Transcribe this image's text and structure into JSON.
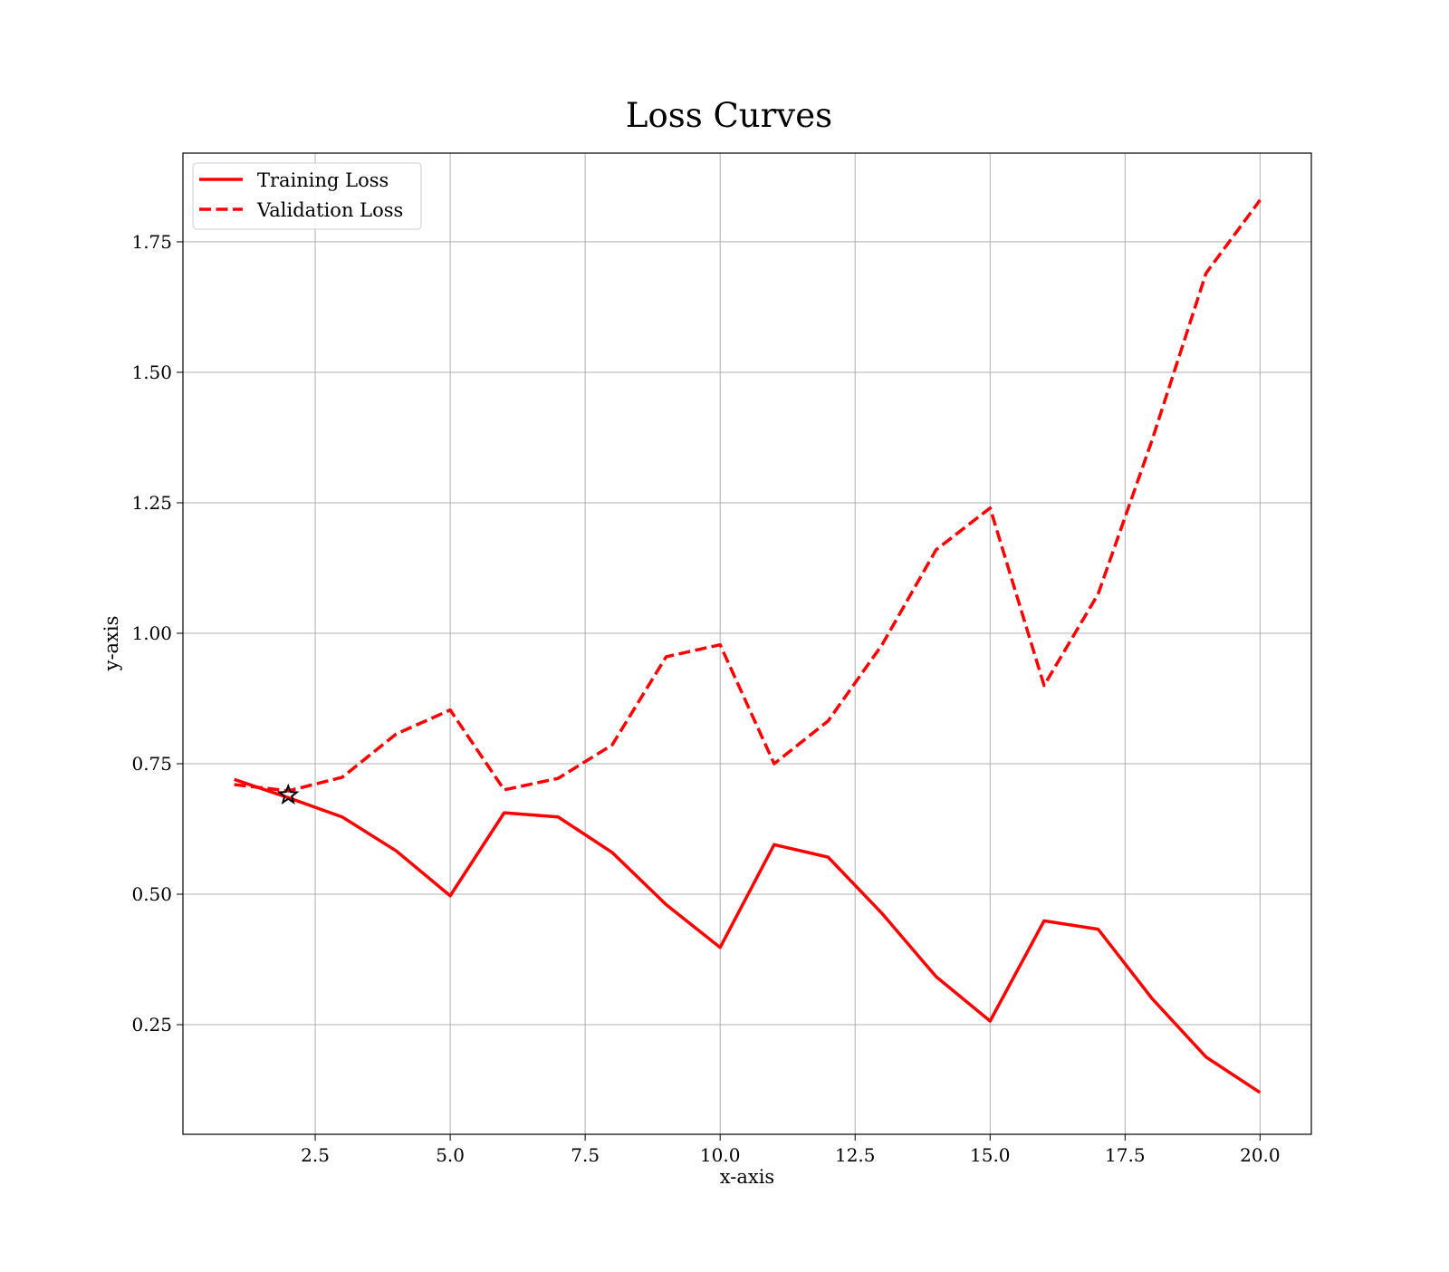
{
  "chart_data": {
    "type": "line",
    "title": "Loss Curves",
    "xlabel": "x-axis",
    "ylabel": "y-axis",
    "xlim": [
      0.05,
      20.95
    ],
    "ylim": [
      0.04,
      1.92
    ],
    "xticks": [
      2.5,
      5.0,
      7.5,
      10.0,
      12.5,
      15.0,
      17.5,
      20.0
    ],
    "xtick_labels": [
      "2.5",
      "5.0",
      "7.5",
      "10.0",
      "12.5",
      "15.0",
      "17.5",
      "20.0"
    ],
    "yticks": [
      0.25,
      0.5,
      0.75,
      1.0,
      1.25,
      1.5,
      1.75
    ],
    "ytick_labels": [
      "0.25",
      "0.50",
      "0.75",
      "1.00",
      "1.25",
      "1.50",
      "1.75"
    ],
    "grid": true,
    "legend_position": "top-left",
    "x": [
      1,
      2,
      3,
      4,
      5,
      6,
      7,
      8,
      9,
      10,
      11,
      12,
      13,
      14,
      15,
      16,
      17,
      18,
      19,
      20
    ],
    "series": [
      {
        "name": "Training Loss",
        "color": "#ff0000",
        "style": "solid",
        "values": [
          0.72,
          0.685,
          0.648,
          0.583,
          0.497,
          0.656,
          0.648,
          0.58,
          0.48,
          0.398,
          0.595,
          0.571,
          0.463,
          0.342,
          0.257,
          0.449,
          0.433,
          0.3,
          0.188,
          0.12
        ]
      },
      {
        "name": "Validation Loss",
        "color": "#ff0000",
        "style": "dashed",
        "values": [
          0.71,
          0.698,
          0.724,
          0.807,
          0.853,
          0.7,
          0.722,
          0.786,
          0.955,
          0.978,
          0.75,
          0.832,
          0.978,
          1.16,
          1.24,
          0.9,
          1.075,
          1.37,
          1.69,
          1.83
        ]
      }
    ],
    "marker": {
      "x": 2,
      "y": 0.69,
      "color": "#000000",
      "shape": "star-icon"
    }
  }
}
